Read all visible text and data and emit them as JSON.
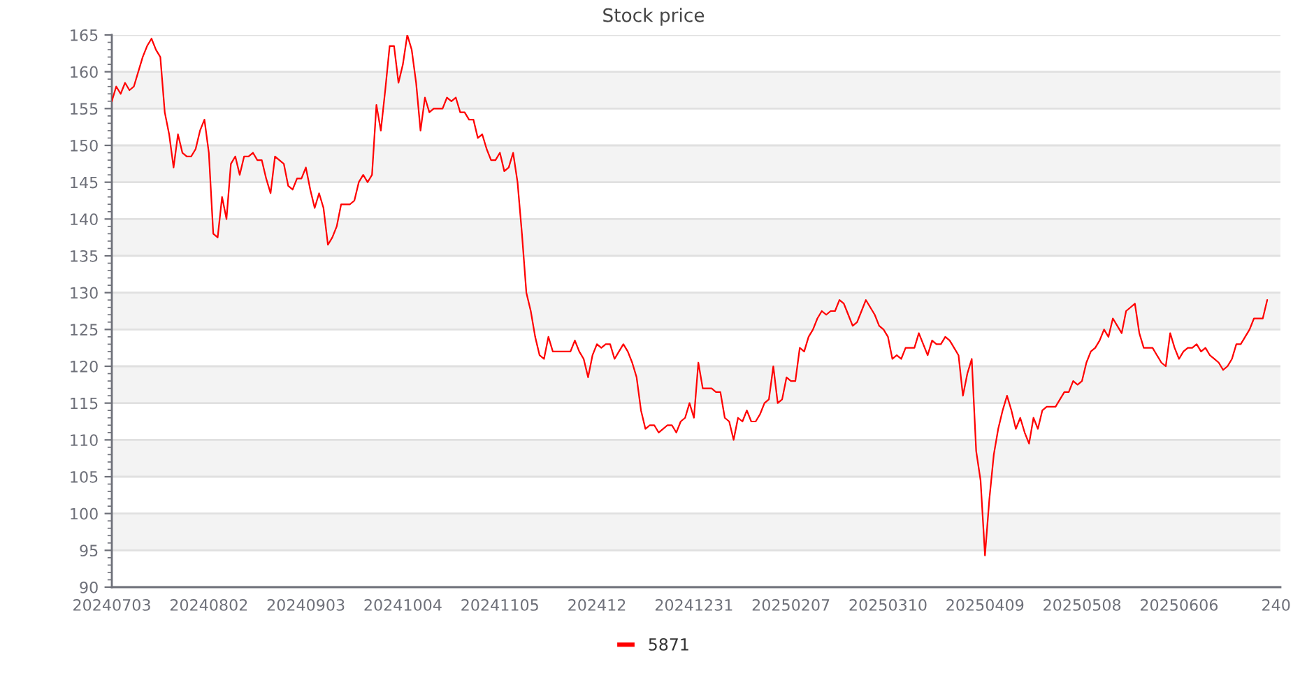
{
  "chart_data": {
    "type": "line",
    "title": "Stock price",
    "categories": [
      "20240703",
      null,
      null,
      null,
      null,
      null,
      null,
      null,
      null,
      null,
      null,
      null,
      null,
      null,
      null,
      null,
      null,
      null,
      null,
      null,
      null,
      null,
      "20240802",
      null,
      null,
      null,
      null,
      null,
      null,
      null,
      null,
      null,
      null,
      null,
      null,
      null,
      null,
      null,
      null,
      null,
      null,
      null,
      null,
      null,
      "20240903",
      null,
      null,
      null,
      null,
      null,
      null,
      null,
      null,
      null,
      null,
      null,
      null,
      null,
      null,
      null,
      null,
      null,
      null,
      null,
      null,
      null,
      "20241004",
      null,
      null,
      null,
      null,
      null,
      null,
      null,
      null,
      null,
      null,
      null,
      null,
      null,
      null,
      null,
      null,
      null,
      null,
      null,
      null,
      null,
      "20241105",
      null,
      null,
      null,
      null,
      null,
      null,
      null,
      null,
      null,
      null,
      null,
      null,
      null,
      null,
      null,
      null,
      null,
      null,
      null,
      null,
      null,
      "202412",
      null,
      null,
      null,
      null,
      null,
      null,
      null,
      null,
      null,
      null,
      null,
      null,
      null,
      null,
      null,
      null,
      null,
      null,
      null,
      null,
      null,
      "20241231",
      null,
      null,
      null,
      null,
      null,
      null,
      null,
      null,
      null,
      null,
      null,
      null,
      null,
      null,
      null,
      null,
      null,
      null,
      null,
      null,
      null,
      "20250207",
      null,
      null,
      null,
      null,
      null,
      null,
      null,
      null,
      null,
      null,
      null,
      null,
      null,
      null,
      null,
      null,
      null,
      null,
      null,
      null,
      null,
      "20250310",
      null,
      null,
      null,
      null,
      null,
      null,
      null,
      null,
      null,
      null,
      null,
      null,
      null,
      null,
      null,
      null,
      null,
      null,
      null,
      null,
      null,
      "20250409",
      null,
      null,
      null,
      null,
      null,
      null,
      null,
      null,
      null,
      null,
      null,
      null,
      null,
      null,
      null,
      null,
      null,
      null,
      null,
      null,
      null,
      "20250508",
      null,
      null,
      null,
      null,
      null,
      null,
      null,
      null,
      null,
      null,
      null,
      null,
      null,
      null,
      null,
      null,
      null,
      null,
      null,
      null,
      null,
      "20250606",
      null,
      null,
      null,
      null,
      null,
      null,
      null,
      null,
      null,
      null,
      null,
      null,
      null,
      null,
      null,
      null,
      null,
      null,
      null,
      null,
      null,
      "240",
      null
    ],
    "series": [
      {
        "name": "5871",
        "color": "#ff0000",
        "values": [
          156,
          158,
          157,
          158.5,
          157.5,
          158,
          160,
          162,
          163.5,
          164.5,
          163,
          162,
          154.5,
          151.5,
          147,
          151.5,
          149,
          148.5,
          148.5,
          149.5,
          152,
          153.5,
          149,
          138,
          137.5,
          143,
          140,
          147.5,
          148.5,
          146,
          148.5,
          148.5,
          149,
          148,
          148,
          145.5,
          143.5,
          148.5,
          148,
          147.5,
          144.5,
          144,
          145.5,
          145.5,
          147,
          144,
          141.5,
          143.5,
          141.5,
          136.5,
          137.5,
          139,
          142,
          142,
          142,
          142.5,
          145,
          146,
          145,
          146,
          155.5,
          152,
          157.5,
          163.5,
          163.5,
          158.5,
          161,
          165,
          163,
          158.5,
          152,
          156.5,
          154.5,
          155,
          155,
          155,
          156.5,
          156,
          156.5,
          154.5,
          154.5,
          153.5,
          153.5,
          151,
          151.5,
          149.5,
          148,
          148,
          149,
          146.5,
          147,
          149,
          145,
          138,
          130,
          127.5,
          124,
          121.5,
          121,
          124,
          122,
          122,
          122,
          122,
          122,
          123.5,
          122,
          121,
          118.5,
          121.5,
          123,
          122.5,
          123,
          123,
          121,
          122,
          123,
          122,
          120.5,
          118.5,
          114,
          111.5,
          112,
          112,
          111,
          111.5,
          112,
          112,
          111,
          112.5,
          113,
          115,
          113,
          120.5,
          117,
          117,
          117,
          116.5,
          116.5,
          113,
          112.5,
          110,
          113,
          112.5,
          114,
          112.5,
          112.5,
          113.5,
          115,
          115.5,
          120,
          115,
          115.5,
          118.5,
          118,
          118,
          122.5,
          122,
          124,
          125,
          126.5,
          127.5,
          127,
          127.5,
          127.5,
          129,
          128.5,
          127,
          125.5,
          126,
          127.5,
          129,
          128,
          127,
          125.5,
          125,
          124,
          121,
          121.5,
          121,
          122.5,
          122.5,
          122.5,
          124.5,
          123,
          121.5,
          123.5,
          123,
          123,
          124,
          123.5,
          122.5,
          121.5,
          116,
          119,
          121,
          108.5,
          104.5,
          94.3,
          102,
          108,
          111.5,
          114,
          116,
          114,
          111.5,
          113,
          111,
          109.5,
          113,
          111.5,
          114,
          114.5,
          114.5,
          114.5,
          115.5,
          116.5,
          116.5,
          118,
          117.5,
          118,
          120.5,
          122,
          122.5,
          123.5,
          125,
          124,
          126.5,
          125.5,
          124.5,
          127.5,
          128,
          128.5,
          124.5,
          122.5,
          122.5,
          122.5,
          121.5,
          120.5,
          120,
          124.5,
          122.5,
          121,
          122,
          122.5,
          122.5,
          123,
          122,
          122.5,
          121.5,
          121,
          120.5,
          119.5,
          120,
          121,
          123,
          123,
          124,
          125,
          126.5,
          126.5,
          126.5,
          129,
          null,
          null,
          null
        ]
      }
    ],
    "ylim": [
      90,
      165
    ],
    "yticks": [
      90,
      95,
      100,
      105,
      110,
      115,
      120,
      125,
      130,
      135,
      140,
      145,
      150,
      155,
      160,
      165
    ],
    "grid": "y",
    "legend": "bottom",
    "bands": [
      {
        "axis": "y",
        "from": 95,
        "to": 100,
        "color": "#f3f3f3"
      },
      {
        "axis": "y",
        "from": 105,
        "to": 110,
        "color": "#f3f3f3"
      },
      {
        "axis": "y",
        "from": 115,
        "to": 120,
        "color": "#f3f3f3"
      },
      {
        "axis": "y",
        "from": 125,
        "to": 130,
        "color": "#f3f3f3"
      },
      {
        "axis": "y",
        "from": 135,
        "to": 140,
        "color": "#f3f3f3"
      },
      {
        "axis": "y",
        "from": 145,
        "to": 150,
        "color": "#f3f3f3"
      },
      {
        "axis": "y",
        "from": 155,
        "to": 160,
        "color": "#f3f3f3"
      }
    ]
  }
}
